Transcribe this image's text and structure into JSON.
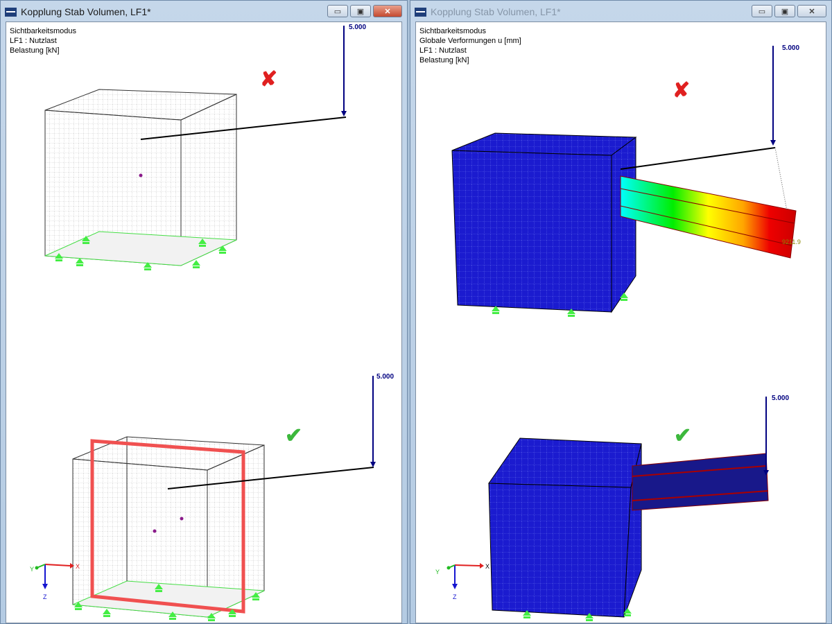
{
  "left_window": {
    "title": "Kopplung Stab Volumen, LF1*",
    "info": [
      "Sichtbarkeitsmodus",
      "LF1 : Nutzlast",
      "Belastung [kN]"
    ],
    "load_top": "5.000",
    "load_bottom": "5.000",
    "status_top": "x-mark-icon",
    "status_bottom": "check-mark-icon",
    "axes": {
      "x": "X",
      "y": "Y",
      "z": "Z"
    }
  },
  "right_window": {
    "title": "Kopplung Stab Volumen, LF1*",
    "info": [
      "Sichtbarkeitsmodus",
      "Globale Verformungen u [mm]",
      "LF1 : Nutzlast",
      "Belastung [kN]"
    ],
    "load_top": "5.000",
    "load_bottom": "5.000",
    "deformation_value": "9211.9",
    "status_top": "x-mark-icon",
    "status_bottom": "check-mark-icon",
    "axes": {
      "x": "X",
      "y": "Y",
      "z": "Z"
    }
  },
  "controls": {
    "minimize": "▭",
    "maximize": "▣",
    "close": "✕"
  },
  "colors": {
    "solid": "#1a1ad0",
    "support": "#33dd33",
    "load": "#000080",
    "error": "#e02020",
    "ok": "#3cb83c",
    "section": "#f05050"
  }
}
